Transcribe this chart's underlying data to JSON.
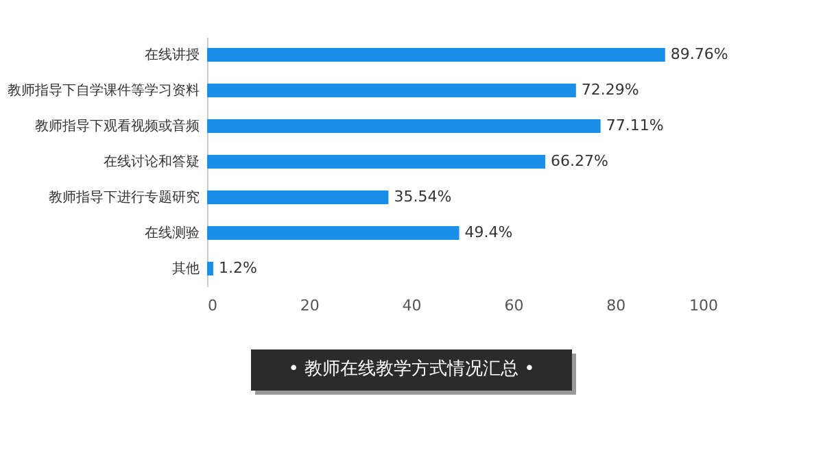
{
  "chart_data": {
    "type": "bar",
    "orientation": "horizontal",
    "title": "• 教师在线教学方式情况汇总 •",
    "categories": [
      "在线讲授",
      "教师指导下自学课件等学习资料",
      "教师指导下观看视频或音频",
      "在线讨论和答疑",
      "教师指导下进行专题研究",
      "在线测验",
      "其他"
    ],
    "values": [
      89.76,
      72.29,
      77.11,
      66.27,
      35.54,
      49.4,
      1.2
    ],
    "color": "#1a8fe8",
    "xlim": [
      0,
      100
    ],
    "xticks": [
      0,
      20,
      40,
      60,
      80,
      100
    ],
    "grid": false,
    "value_labels": [
      "89.76%",
      "72.29%",
      "77.11%",
      "66.27%",
      "35.54%",
      "49.4%",
      "1.2%"
    ]
  }
}
